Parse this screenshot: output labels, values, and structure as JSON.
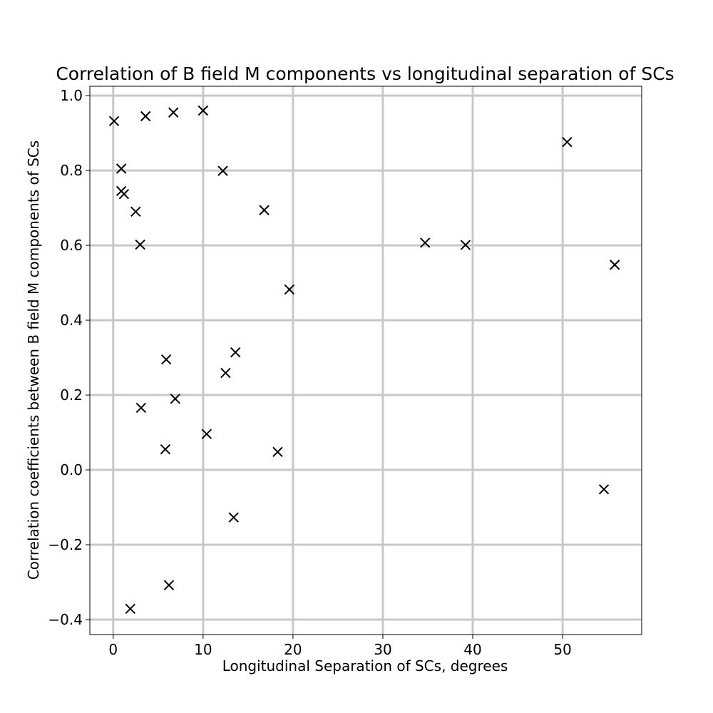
{
  "chart_data": {
    "type": "scatter",
    "title": "Correlation of B field M components vs longitudinal separation of SCs",
    "xlabel": "Longitudinal Separation of SCs, degrees",
    "ylabel": "Correlation coefficients between B field M components of SCs",
    "xlim": [
      -2.6,
      58.8
    ],
    "ylim": [
      -0.44,
      1.025
    ],
    "xticks": [
      0,
      10,
      20,
      30,
      40,
      50
    ],
    "yticks": [
      -0.4,
      -0.2,
      0.0,
      0.2,
      0.4,
      0.6,
      0.8,
      1.0
    ],
    "xtick_labels": [
      "0",
      "10",
      "20",
      "30",
      "40",
      "50"
    ],
    "ytick_labels": [
      "−0.4",
      "−0.2",
      "0.0",
      "0.2",
      "0.4",
      "0.6",
      "0.8",
      "1.0"
    ],
    "grid": true,
    "marker": "x",
    "marker_color": "#000000",
    "grid_color": "#c8c8c8",
    "points": [
      {
        "x": 0.1,
        "y": 0.932
      },
      {
        "x": 0.9,
        "y": 0.805
      },
      {
        "x": 0.9,
        "y": 0.745
      },
      {
        "x": 1.2,
        "y": 0.737
      },
      {
        "x": 2.5,
        "y": 0.69
      },
      {
        "x": 3.0,
        "y": 0.602
      },
      {
        "x": 3.6,
        "y": 0.945
      },
      {
        "x": 6.7,
        "y": 0.955
      },
      {
        "x": 10.0,
        "y": 0.96
      },
      {
        "x": 12.2,
        "y": 0.799
      },
      {
        "x": 16.8,
        "y": 0.694
      },
      {
        "x": 19.6,
        "y": 0.482
      },
      {
        "x": 34.7,
        "y": 0.607
      },
      {
        "x": 39.2,
        "y": 0.601
      },
      {
        "x": 50.5,
        "y": 0.876
      },
      {
        "x": 55.8,
        "y": 0.548
      },
      {
        "x": 5.9,
        "y": 0.295
      },
      {
        "x": 13.6,
        "y": 0.314
      },
      {
        "x": 12.5,
        "y": 0.259
      },
      {
        "x": 6.9,
        "y": 0.19
      },
      {
        "x": 3.1,
        "y": 0.166
      },
      {
        "x": 10.4,
        "y": 0.096
      },
      {
        "x": 5.8,
        "y": 0.055
      },
      {
        "x": 18.3,
        "y": 0.048
      },
      {
        "x": 54.6,
        "y": -0.052
      },
      {
        "x": 13.4,
        "y": -0.127
      },
      {
        "x": 6.2,
        "y": -0.308
      },
      {
        "x": 1.9,
        "y": -0.371
      }
    ]
  }
}
